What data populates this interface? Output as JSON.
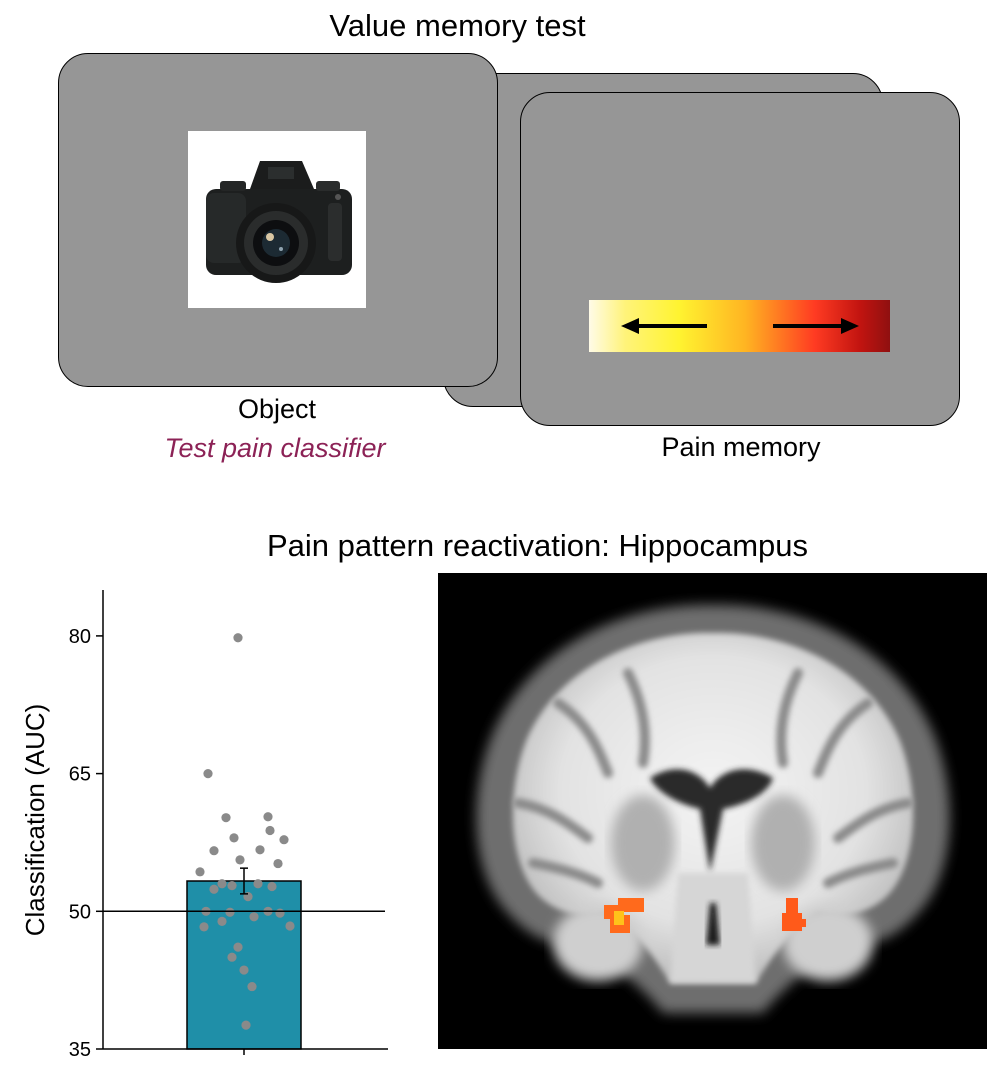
{
  "top_section": {
    "title": "Value memory test",
    "object_label": "Object",
    "classifier_label": "Test pain classifier",
    "pain_memory_label": "Pain memory"
  },
  "bottom_section": {
    "title": "Pain pattern reactivation: Hippocampus"
  },
  "colors": {
    "screen_gray": "#969696",
    "accent_purple": "#8c2256",
    "bar_teal": "#1f8fa8",
    "dot_gray": "#8a8a8a"
  },
  "icons": {
    "object_image": "camera-icon",
    "left_arrow": "arrow-left-icon",
    "right_arrow": "arrow-right-icon"
  },
  "chart_data": {
    "type": "bar",
    "categories": [
      ""
    ],
    "values": [
      53.3
    ],
    "error": 1.4,
    "ylabel": "Classification (AUC)",
    "ylim": [
      35,
      85
    ],
    "yticks": [
      35,
      50,
      65,
      80
    ],
    "reference_line": 50,
    "grid": false,
    "points": [
      79.8,
      65.0,
      60.3,
      60.2,
      58.8,
      58.0,
      57.8,
      56.7,
      56.6,
      55.6,
      55.2,
      54.3,
      53.0,
      53.0,
      52.8,
      52.7,
      52.4,
      51.6,
      50.0,
      50.0,
      49.9,
      49.8,
      49.4,
      48.9,
      48.4,
      48.3,
      46.1,
      45.0,
      43.6,
      41.8,
      37.6
    ]
  }
}
